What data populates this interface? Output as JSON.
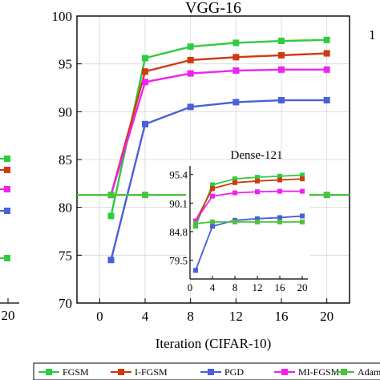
{
  "chart_data": [
    {
      "type": "line",
      "title": "VGG-16",
      "xlabel": "Iteration (CIFAR-10)",
      "ylabel": "",
      "x": [
        1,
        4,
        8,
        12,
        16,
        20
      ],
      "xticks": [
        "0",
        "4",
        "8",
        "12",
        "16",
        "20"
      ],
      "yticks": [
        "70",
        "75",
        "80",
        "85",
        "90",
        "95",
        "100"
      ],
      "xlim": [
        -2,
        22
      ],
      "ylim": [
        70,
        100
      ],
      "grid": true,
      "series": [
        {
          "name": "FGSM",
          "color": "#2ecc40",
          "marker": "square",
          "values": [
            79.1,
            95.6,
            96.8,
            97.2,
            97.4,
            97.5
          ]
        },
        {
          "name": "I-FGSM",
          "color": "#d03a10",
          "marker": "square",
          "values": [
            81.3,
            94.2,
            95.4,
            95.7,
            95.9,
            96.1
          ]
        },
        {
          "name": "PGD",
          "color": "#4a5fd8",
          "marker": "square",
          "values": [
            74.5,
            88.7,
            90.5,
            91.0,
            91.2,
            91.2
          ]
        },
        {
          "name": "MI-FGSM",
          "color": "#ee22ee",
          "marker": "square",
          "values": [
            81.3,
            93.1,
            94.0,
            94.3,
            94.4,
            94.4
          ]
        },
        {
          "name": "Adam-",
          "color": "#4ac23e",
          "marker": "square",
          "values": [
            81.3,
            81.3,
            81.3,
            81.3,
            81.3,
            81.3
          ]
        }
      ]
    },
    {
      "type": "line",
      "title": "Dense-121",
      "xlabel": "",
      "ylabel": "",
      "x": [
        1,
        4,
        8,
        12,
        16,
        20
      ],
      "xticks": [
        "0",
        "4",
        "8",
        "12",
        "16",
        "20"
      ],
      "yticks": [
        "79.5",
        "84.8",
        "90.1",
        "95.4"
      ],
      "xlim": [
        0,
        21
      ],
      "ylim": [
        76,
        97
      ],
      "grid": false,
      "series": [
        {
          "name": "FGSM",
          "color": "#2ecc40",
          "values": [
            85.8,
            93.5,
            94.6,
            94.9,
            95.1,
            95.3
          ]
        },
        {
          "name": "I-FGSM",
          "color": "#d03a10",
          "values": [
            86.8,
            92.8,
            93.9,
            94.2,
            94.4,
            94.6
          ]
        },
        {
          "name": "MI-FGSM",
          "color": "#ee22ee",
          "values": [
            86.8,
            91.4,
            92.0,
            92.2,
            92.3,
            92.3
          ]
        },
        {
          "name": "PGD",
          "color": "#4a5fd8",
          "values": [
            77.6,
            85.8,
            86.9,
            87.2,
            87.4,
            87.7
          ]
        },
        {
          "name": "Adam-",
          "color": "#4ac23e",
          "values": [
            86.3,
            86.6,
            86.6,
            86.6,
            86.6,
            86.6
          ]
        }
      ]
    }
  ],
  "left_panel": {
    "tick_20": "20",
    "marker_colors": [
      "#2ecc40",
      "#d03a10",
      "#ee22ee",
      "#4a5fd8",
      "#2ecc40"
    ]
  },
  "right_edge_label": "1"
}
